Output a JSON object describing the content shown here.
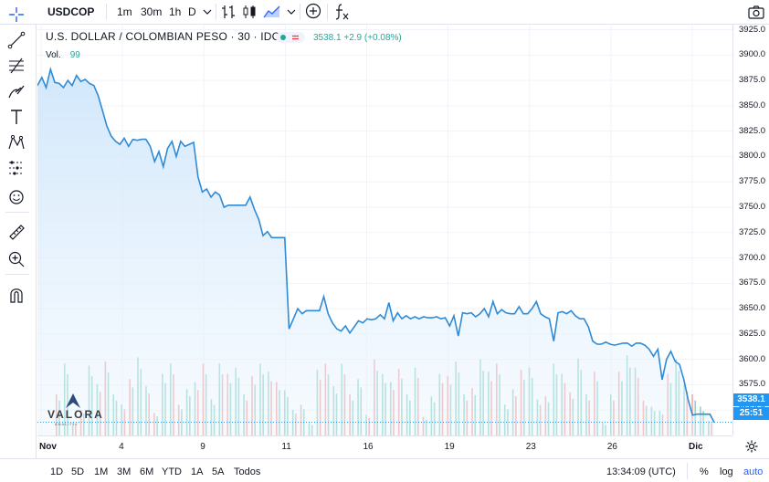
{
  "toolbar": {
    "symbol": "USDCOP",
    "intervals": [
      "1m",
      "30m",
      "1h",
      "D"
    ],
    "active_interval": "30m",
    "fx_icon": "fx-icon"
  },
  "legend": {
    "title": "U.S. DOLLAR / COLOMBIAN PESO · 30 · IDC",
    "values": "3538.1  +2.9 (+0.08%)",
    "vol_label": "Vol.",
    "vol_value": "99"
  },
  "price_badge": "3538.1",
  "time_badge": "25:51",
  "watermark": {
    "name": "VALORA",
    "sub": "ANALITIK"
  },
  "bottom": {
    "ranges": [
      "1D",
      "5D",
      "1M",
      "3M",
      "6M",
      "YTD",
      "1A",
      "5A",
      "Todos"
    ],
    "clock": "13:34:09 (UTC)",
    "percent": "%",
    "log": "log",
    "auto": "auto"
  },
  "colors": {
    "line": "#2f8bd6",
    "area_top": "#cfe6fb",
    "vol_up": "#8fd4c9",
    "vol_down": "#f3a6a6",
    "accent": "#2962ff",
    "badge": "#2196f3"
  },
  "chart_data": {
    "type": "area",
    "y_ticks": [
      3925,
      3900,
      3875,
      3850,
      3825,
      3800,
      3775,
      3750,
      3725,
      3700,
      3675,
      3650,
      3625,
      3600,
      3575,
      3550
    ],
    "ylim": [
      3525,
      3930
    ],
    "x_ticks": [
      "Nov",
      "4",
      "9",
      "11",
      "16",
      "19",
      "23",
      "26",
      "Dic"
    ],
    "series": [
      {
        "values": [
          3870,
          3878,
          3868,
          3886,
          3873,
          3872,
          3868,
          3875,
          3870,
          3880,
          3874,
          3876,
          3872,
          3870,
          3860,
          3845,
          3830,
          3820,
          3815,
          3812,
          3818,
          3810,
          3817,
          3816,
          3817,
          3817,
          3810,
          3795,
          3805,
          3790,
          3808,
          3815,
          3800,
          3815,
          3810,
          3812,
          3814,
          3780,
          3765,
          3768,
          3760,
          3765,
          3762,
          3750,
          3752,
          3752,
          3752,
          3752,
          3752,
          3760,
          3748,
          3738,
          3722,
          3726,
          3720,
          3720,
          3720,
          3720,
          3630,
          3640,
          3650,
          3645,
          3648,
          3648,
          3648,
          3648,
          3662,
          3645,
          3636,
          3630,
          3628,
          3633,
          3626,
          3632,
          3638,
          3636,
          3640,
          3639,
          3640,
          3644,
          3640,
          3656,
          3638,
          3646,
          3640,
          3643,
          3640,
          3642,
          3640,
          3642,
          3641,
          3641,
          3642,
          3640,
          3641,
          3633,
          3643,
          3623,
          3646,
          3645,
          3646,
          3642,
          3645,
          3650,
          3642,
          3657,
          3645,
          3649,
          3646,
          3645,
          3645,
          3652,
          3645,
          3645,
          3650,
          3657,
          3645,
          3642,
          3640,
          3618,
          3646,
          3647,
          3645,
          3648,
          3643,
          3640,
          3640,
          3632,
          3618,
          3615,
          3615,
          3617,
          3615,
          3614,
          3615,
          3616,
          3616,
          3613,
          3616,
          3616,
          3614,
          3610,
          3603,
          3610,
          3580,
          3600,
          3608,
          3598,
          3595,
          3580,
          3560,
          3545,
          3546,
          3546,
          3546,
          3546,
          3538
        ]
      }
    ],
    "volume_values": [
      40,
      70,
      12,
      25,
      68,
      50,
      72,
      40,
      30,
      55,
      76,
      48,
      22,
      60,
      70,
      30,
      45,
      52,
      70,
      35,
      70,
      60,
      66,
      40,
      58,
      70,
      62,
      52,
      44,
      25,
      30,
      12,
      64,
      70,
      48,
      70,
      40,
      55,
      20,
      74,
      60,
      52,
      65,
      40,
      66,
      18,
      38,
      60,
      58,
      72,
      40,
      46,
      74,
      62,
      70,
      30,
      45,
      64,
      66,
      35,
      38,
      70,
      60,
      42,
      75,
      40,
      62,
      12,
      40,
      62,
      78,
      66,
      34,
      28,
      24,
      60,
      74,
      50,
      40,
      28,
      14
    ]
  }
}
